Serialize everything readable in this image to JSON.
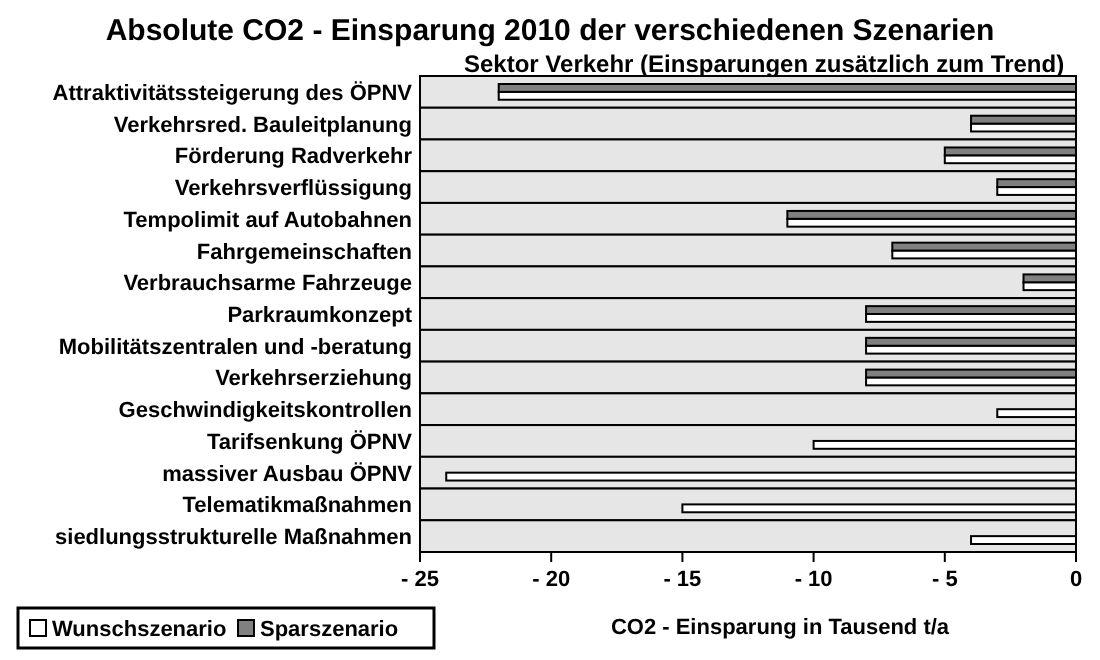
{
  "chart_data": {
    "type": "bar",
    "orientation": "horizontal",
    "title": "Absolute CO2 - Einsparung 2010 der verschiedenen Szenarien",
    "subtitle": "Sektor Verkehr (Einsparungen zusätzlich zum Trend)",
    "xlabel": "CO2 - Einsparung in Tausend t/a",
    "categories": [
      "Attraktivitätssteigerung des ÖPNV",
      "Verkehrsred. Bauleitplanung",
      "Förderung Radverkehr",
      "Verkehrsverflüssigung",
      "Tempolimit auf Autobahnen",
      "Fahrgemeinschaften",
      "Verbrauchsarme Fahrzeuge",
      "Parkraumkonzept",
      "Mobilitätszentralen und -beratung",
      "Verkehrserziehung",
      "Geschwindigkeitskontrollen",
      "Tarifsenkung ÖPNV",
      "massiver Ausbau ÖPNV",
      "Telematikmaßnahmen",
      "siedlungsstrukturelle Maßnahmen"
    ],
    "series": [
      {
        "name": "Wunschszenario",
        "color": "#ffffff",
        "values": [
          -22,
          -4,
          -5,
          -3,
          -11,
          -7,
          -2,
          -8,
          -8,
          -8,
          -3,
          -10,
          -24,
          -15,
          -4
        ]
      },
      {
        "name": "Sparszenario",
        "color": "#808080",
        "values": [
          -22,
          -4,
          -5,
          -3,
          -11,
          -7,
          -2,
          -8,
          -8,
          -8,
          null,
          null,
          null,
          null,
          null
        ]
      }
    ],
    "xlim": [
      -25,
      0
    ],
    "xticks": [
      {
        "value": -25,
        "label": "- 25"
      },
      {
        "value": -20,
        "label": "- 20"
      },
      {
        "value": -15,
        "label": "- 15"
      },
      {
        "value": -10,
        "label": "- 10"
      },
      {
        "value": -5,
        "label": "- 5"
      },
      0
    ],
    "grid": false,
    "legend": "bottom left"
  }
}
